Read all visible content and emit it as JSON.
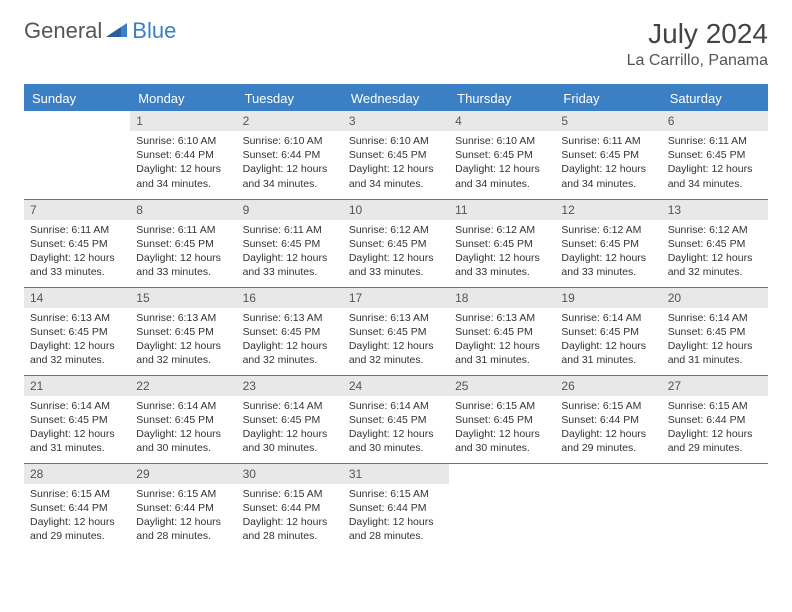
{
  "logo": {
    "text1": "General",
    "text2": "Blue"
  },
  "title": "July 2024",
  "location": "La Carrillo, Panama",
  "colors": {
    "header_bg": "#3b7fc4",
    "header_text": "#ffffff",
    "daynum_bg": "#e8e8e8",
    "border": "#3b7fc4",
    "text": "#333333"
  },
  "weekdays": [
    "Sunday",
    "Monday",
    "Tuesday",
    "Wednesday",
    "Thursday",
    "Friday",
    "Saturday"
  ],
  "weeks": [
    [
      null,
      {
        "n": "1",
        "sr": "Sunrise: 6:10 AM",
        "ss": "Sunset: 6:44 PM",
        "dl": "Daylight: 12 hours and 34 minutes."
      },
      {
        "n": "2",
        "sr": "Sunrise: 6:10 AM",
        "ss": "Sunset: 6:44 PM",
        "dl": "Daylight: 12 hours and 34 minutes."
      },
      {
        "n": "3",
        "sr": "Sunrise: 6:10 AM",
        "ss": "Sunset: 6:45 PM",
        "dl": "Daylight: 12 hours and 34 minutes."
      },
      {
        "n": "4",
        "sr": "Sunrise: 6:10 AM",
        "ss": "Sunset: 6:45 PM",
        "dl": "Daylight: 12 hours and 34 minutes."
      },
      {
        "n": "5",
        "sr": "Sunrise: 6:11 AM",
        "ss": "Sunset: 6:45 PM",
        "dl": "Daylight: 12 hours and 34 minutes."
      },
      {
        "n": "6",
        "sr": "Sunrise: 6:11 AM",
        "ss": "Sunset: 6:45 PM",
        "dl": "Daylight: 12 hours and 34 minutes."
      }
    ],
    [
      {
        "n": "7",
        "sr": "Sunrise: 6:11 AM",
        "ss": "Sunset: 6:45 PM",
        "dl": "Daylight: 12 hours and 33 minutes."
      },
      {
        "n": "8",
        "sr": "Sunrise: 6:11 AM",
        "ss": "Sunset: 6:45 PM",
        "dl": "Daylight: 12 hours and 33 minutes."
      },
      {
        "n": "9",
        "sr": "Sunrise: 6:11 AM",
        "ss": "Sunset: 6:45 PM",
        "dl": "Daylight: 12 hours and 33 minutes."
      },
      {
        "n": "10",
        "sr": "Sunrise: 6:12 AM",
        "ss": "Sunset: 6:45 PM",
        "dl": "Daylight: 12 hours and 33 minutes."
      },
      {
        "n": "11",
        "sr": "Sunrise: 6:12 AM",
        "ss": "Sunset: 6:45 PM",
        "dl": "Daylight: 12 hours and 33 minutes."
      },
      {
        "n": "12",
        "sr": "Sunrise: 6:12 AM",
        "ss": "Sunset: 6:45 PM",
        "dl": "Daylight: 12 hours and 33 minutes."
      },
      {
        "n": "13",
        "sr": "Sunrise: 6:12 AM",
        "ss": "Sunset: 6:45 PM",
        "dl": "Daylight: 12 hours and 32 minutes."
      }
    ],
    [
      {
        "n": "14",
        "sr": "Sunrise: 6:13 AM",
        "ss": "Sunset: 6:45 PM",
        "dl": "Daylight: 12 hours and 32 minutes."
      },
      {
        "n": "15",
        "sr": "Sunrise: 6:13 AM",
        "ss": "Sunset: 6:45 PM",
        "dl": "Daylight: 12 hours and 32 minutes."
      },
      {
        "n": "16",
        "sr": "Sunrise: 6:13 AM",
        "ss": "Sunset: 6:45 PM",
        "dl": "Daylight: 12 hours and 32 minutes."
      },
      {
        "n": "17",
        "sr": "Sunrise: 6:13 AM",
        "ss": "Sunset: 6:45 PM",
        "dl": "Daylight: 12 hours and 32 minutes."
      },
      {
        "n": "18",
        "sr": "Sunrise: 6:13 AM",
        "ss": "Sunset: 6:45 PM",
        "dl": "Daylight: 12 hours and 31 minutes."
      },
      {
        "n": "19",
        "sr": "Sunrise: 6:14 AM",
        "ss": "Sunset: 6:45 PM",
        "dl": "Daylight: 12 hours and 31 minutes."
      },
      {
        "n": "20",
        "sr": "Sunrise: 6:14 AM",
        "ss": "Sunset: 6:45 PM",
        "dl": "Daylight: 12 hours and 31 minutes."
      }
    ],
    [
      {
        "n": "21",
        "sr": "Sunrise: 6:14 AM",
        "ss": "Sunset: 6:45 PM",
        "dl": "Daylight: 12 hours and 31 minutes."
      },
      {
        "n": "22",
        "sr": "Sunrise: 6:14 AM",
        "ss": "Sunset: 6:45 PM",
        "dl": "Daylight: 12 hours and 30 minutes."
      },
      {
        "n": "23",
        "sr": "Sunrise: 6:14 AM",
        "ss": "Sunset: 6:45 PM",
        "dl": "Daylight: 12 hours and 30 minutes."
      },
      {
        "n": "24",
        "sr": "Sunrise: 6:14 AM",
        "ss": "Sunset: 6:45 PM",
        "dl": "Daylight: 12 hours and 30 minutes."
      },
      {
        "n": "25",
        "sr": "Sunrise: 6:15 AM",
        "ss": "Sunset: 6:45 PM",
        "dl": "Daylight: 12 hours and 30 minutes."
      },
      {
        "n": "26",
        "sr": "Sunrise: 6:15 AM",
        "ss": "Sunset: 6:44 PM",
        "dl": "Daylight: 12 hours and 29 minutes."
      },
      {
        "n": "27",
        "sr": "Sunrise: 6:15 AM",
        "ss": "Sunset: 6:44 PM",
        "dl": "Daylight: 12 hours and 29 minutes."
      }
    ],
    [
      {
        "n": "28",
        "sr": "Sunrise: 6:15 AM",
        "ss": "Sunset: 6:44 PM",
        "dl": "Daylight: 12 hours and 29 minutes."
      },
      {
        "n": "29",
        "sr": "Sunrise: 6:15 AM",
        "ss": "Sunset: 6:44 PM",
        "dl": "Daylight: 12 hours and 28 minutes."
      },
      {
        "n": "30",
        "sr": "Sunrise: 6:15 AM",
        "ss": "Sunset: 6:44 PM",
        "dl": "Daylight: 12 hours and 28 minutes."
      },
      {
        "n": "31",
        "sr": "Sunrise: 6:15 AM",
        "ss": "Sunset: 6:44 PM",
        "dl": "Daylight: 12 hours and 28 minutes."
      },
      null,
      null,
      null
    ]
  ]
}
